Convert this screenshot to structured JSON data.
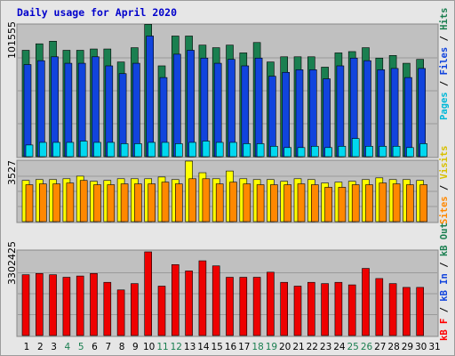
{
  "chart_data": {
    "type": "bar",
    "title": "Daily usage for April 2020",
    "days": [
      "1",
      "2",
      "3",
      "4",
      "5",
      "6",
      "7",
      "8",
      "9",
      "10",
      "11",
      "12",
      "13",
      "14",
      "15",
      "16",
      "17",
      "18",
      "19",
      "20",
      "21",
      "22",
      "23",
      "24",
      "25",
      "26",
      "27",
      "28",
      "29",
      "30",
      "31"
    ],
    "weekend_days": [
      4,
      5,
      11,
      12,
      18,
      19,
      25,
      26
    ],
    "panels": [
      {
        "name": "hits-files-pages",
        "max_label": "101555",
        "max": 101555
      },
      {
        "name": "visits-sites",
        "max_label": "3527",
        "max": 3527
      },
      {
        "name": "kbytes",
        "max_label": "3302425",
        "max": 3302425
      }
    ],
    "legend_labels": {
      "pages": "Pages",
      "files": "Files",
      "hits": "Hits",
      "sites": "Sites",
      "visits": "Visits",
      "kb_f": "kB F",
      "kb_in": "kB In",
      "kb_out": "kB Out"
    },
    "colors": {
      "hits": "#1a7f50",
      "files": "#1144dd",
      "pages": "#00d8f0",
      "visits": "#ffff00",
      "sites": "#ff8800",
      "kbytes": "#ee0000",
      "grid": "#9a9a9a",
      "weekday_tick": "#000000",
      "weekend_tick": "#1a7f50"
    },
    "series": {
      "hits": [
        82000,
        87000,
        89000,
        82000,
        82000,
        83000,
        83000,
        73000,
        84000,
        102000,
        70000,
        93000,
        93000,
        86000,
        84000,
        86000,
        80000,
        88000,
        73000,
        77000,
        77000,
        77000,
        69000,
        80000,
        81000,
        84000,
        76000,
        78000,
        72000,
        75000
      ],
      "files": [
        71000,
        74000,
        77000,
        72000,
        72000,
        77000,
        70000,
        64000,
        72000,
        93000,
        61000,
        79000,
        82000,
        76000,
        72000,
        75000,
        70000,
        76000,
        62000,
        65000,
        67000,
        67000,
        60000,
        70000,
        76000,
        74000,
        67000,
        68000,
        61000,
        68000
      ],
      "pages": [
        9000,
        11000,
        11000,
        11000,
        12000,
        11000,
        11000,
        10000,
        10000,
        11000,
        11000,
        10000,
        11000,
        12000,
        11000,
        11000,
        10000,
        10000,
        8000,
        7000,
        7000,
        8000,
        7000,
        8000,
        14000,
        8000,
        8000,
        8000,
        7000,
        10000
      ],
      "visits": [
        2400,
        2450,
        2450,
        2500,
        2650,
        2350,
        2400,
        2500,
        2500,
        2500,
        2600,
        2450,
        3527,
        2850,
        2500,
        2950,
        2500,
        2450,
        2450,
        2350,
        2500,
        2450,
        2250,
        2300,
        2350,
        2450,
        2550,
        2450,
        2450,
        2400
      ],
      "sites": [
        2150,
        2200,
        2200,
        2250,
        2400,
        2150,
        2150,
        2200,
        2200,
        2200,
        2300,
        2200,
        2500,
        2500,
        2200,
        2300,
        2200,
        2150,
        2150,
        2150,
        2200,
        2150,
        2000,
        2000,
        2150,
        2150,
        2250,
        2200,
        2150,
        2150
      ],
      "kbytes": [
        2400000,
        2450000,
        2400000,
        2300000,
        2350000,
        2450000,
        2100000,
        1800000,
        2050000,
        3302425,
        1950000,
        2800000,
        2550000,
        2950000,
        2750000,
        2300000,
        2300000,
        2300000,
        2500000,
        2100000,
        1950000,
        2100000,
        2050000,
        2100000,
        2000000,
        2650000,
        2250000,
        2050000,
        1900000,
        1900000
      ]
    }
  }
}
